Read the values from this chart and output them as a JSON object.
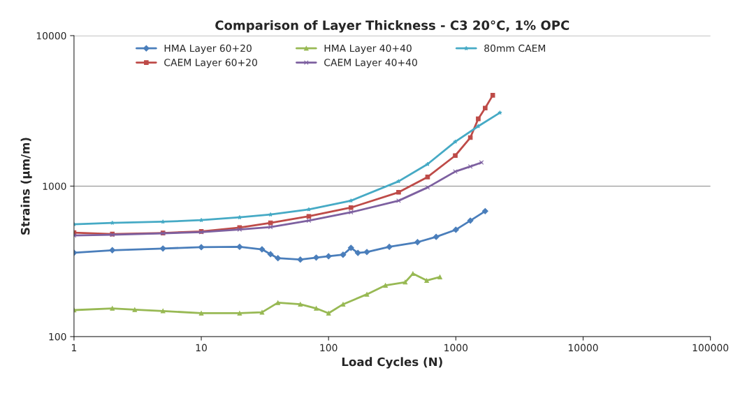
{
  "chart_data": {
    "type": "line",
    "title": "Comparison of Layer Thickness - C3 20°C, 1% OPC",
    "xlabel": "Load Cycles (N)",
    "ylabel": "Strains (µm/m)",
    "log": "xy",
    "grid": "y",
    "legend": "top",
    "line_style": "solid",
    "xlim": [
      1,
      100000
    ],
    "xticks": [
      1,
      10,
      100,
      1000,
      10000,
      100000
    ],
    "ylim": [
      100,
      10000
    ],
    "yticks": [
      100,
      1000,
      10000
    ],
    "series": [
      {
        "name": "HMA Layer 60+20",
        "color": "#4a7ebb",
        "marker": "diamond",
        "x": [
          1,
          2,
          5,
          10,
          20,
          30,
          35,
          40,
          60,
          80,
          100,
          130,
          150,
          170,
          200,
          300,
          500,
          700,
          1000,
          1300,
          1700
        ],
        "values": [
          361,
          375,
          385,
          393,
          395,
          380,
          353,
          332,
          325,
          335,
          342,
          350,
          389,
          360,
          365,
          395,
          424,
          460,
          513,
          590,
          682
        ]
      },
      {
        "name": "CAEM Layer 60+20",
        "color": "#be4b48",
        "marker": "square",
        "x": [
          1,
          2,
          5,
          10,
          20,
          35,
          70,
          150,
          355,
          600,
          990,
          1300,
          1500,
          1700,
          1950
        ],
        "values": [
          491,
          480,
          488,
          500,
          530,
          570,
          630,
          720,
          910,
          1150,
          1596,
          2100,
          2800,
          3300,
          4018
        ]
      },
      {
        "name": "HMA Layer 40+40",
        "color": "#98b954",
        "marker": "triangle",
        "x": [
          1,
          2,
          3,
          5,
          10,
          20,
          30,
          40,
          60,
          80,
          100,
          130,
          200,
          280,
          400,
          460,
          590,
          750
        ],
        "values": [
          150,
          154,
          151,
          148,
          143,
          143,
          145,
          168,
          164,
          154,
          143,
          164,
          191,
          219,
          230,
          262,
          236,
          249
        ]
      },
      {
        "name": "CAEM Layer 40+40",
        "color": "#7d60a0",
        "marker": "cross",
        "x": [
          1,
          2,
          5,
          10,
          20,
          35,
          70,
          150,
          355,
          600,
          990,
          1300,
          1590
        ],
        "values": [
          470,
          475,
          485,
          495,
          515,
          535,
          590,
          670,
          800,
          980,
          1250,
          1350,
          1435
        ]
      },
      {
        "name": "80mm CAEM",
        "color": "#46aac5",
        "marker": "star",
        "x": [
          1,
          2,
          5,
          10,
          20,
          35,
          70,
          150,
          355,
          600,
          990,
          1500,
          2220
        ],
        "values": [
          558,
          570,
          580,
          594,
          620,
          647,
          700,
          800,
          1076,
          1400,
          1972,
          2500,
          3077
        ]
      }
    ]
  }
}
